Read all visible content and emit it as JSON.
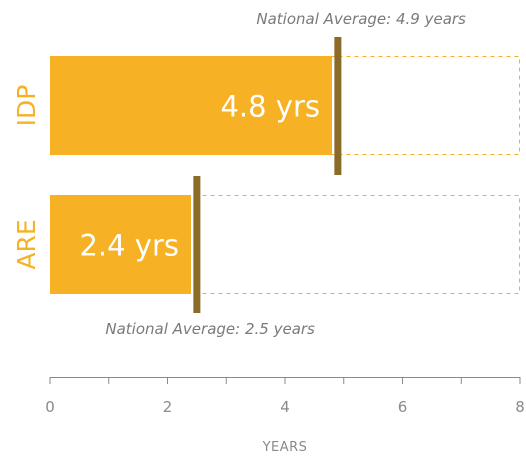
{
  "chart_data": {
    "type": "bar",
    "orientation": "horizontal",
    "categories": [
      "IDP",
      "ARE"
    ],
    "values": [
      4.8,
      2.4
    ],
    "value_labels": [
      "4.8 yrs",
      "2.4 yrs"
    ],
    "reference_values": [
      4.9,
      2.5
    ],
    "reference_labels": [
      "National Average: 4.9 years",
      "National Average: 2.5 years"
    ],
    "xlabel": "YEARS",
    "ylabel": "",
    "xlim": [
      0,
      8
    ],
    "x_ticks": [
      0,
      2,
      4,
      6,
      8
    ],
    "grid": false,
    "legend": "none",
    "colors": {
      "bar": "#f7b124",
      "reference_line": "#8c6a27",
      "category_label": "#f7b124",
      "outline": "#f7b124",
      "axis": "#8a8a8a"
    }
  }
}
